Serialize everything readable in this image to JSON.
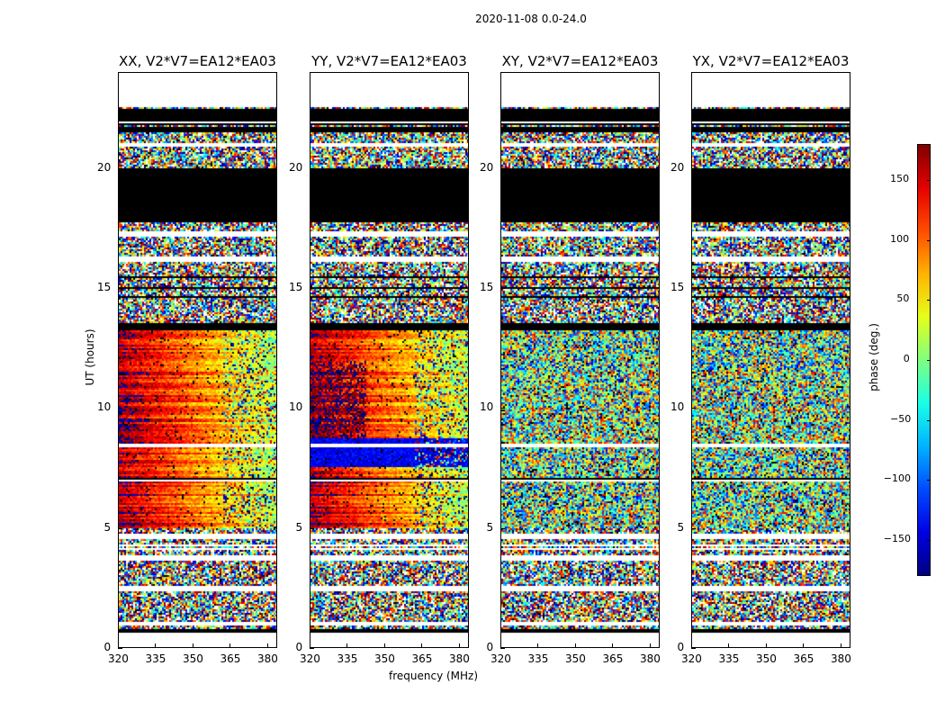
{
  "figure": {
    "suptitle": "2020-11-08 0.0-24.0"
  },
  "chart_data": {
    "type": "heatmap",
    "xlabel": "frequency (MHz)",
    "ylabel": "UT (hours)",
    "xlim": [
      320,
      384
    ],
    "ylim": [
      0,
      24
    ],
    "xticks": [
      320,
      335,
      350,
      365,
      380
    ],
    "yticks": [
      0,
      5,
      10,
      15,
      20
    ],
    "colorbar": {
      "label": "phase (deg.)",
      "range": [
        -180,
        180
      ],
      "ticks": [
        150,
        100,
        50,
        0,
        -50,
        -100,
        -150
      ],
      "tick_labels": [
        "150",
        "100",
        "50",
        "0",
        "−50",
        "−100",
        "−150"
      ],
      "colormap": "jet"
    },
    "panels": [
      {
        "title": "XX, V2*V7=EA12*EA03",
        "pattern": "parallel-hand",
        "blue_band": false
      },
      {
        "title": "YY, V2*V7=EA12*EA03",
        "pattern": "parallel-hand",
        "blue_band": true
      },
      {
        "title": "XY, V2*V7=EA12*EA03",
        "pattern": "cross-hand",
        "blue_band": false
      },
      {
        "title": "YX, V2*V7=EA12*EA03",
        "pattern": "cross-hand",
        "blue_band": false
      }
    ],
    "time_bands_hours": {
      "no_data": [
        [
          0,
          0.7
        ],
        [
          1.0,
          1.15
        ],
        [
          2.4,
          2.6
        ],
        [
          3.7,
          3.9
        ],
        [
          4.6,
          4.8
        ],
        [
          16.15,
          16.35
        ],
        [
          17.15,
          17.3
        ],
        [
          20.9,
          21.1
        ],
        [
          22.6,
          24
        ]
      ],
      "flagged_black": [
        [
          0.7,
          0.85
        ],
        [
          13.3,
          13.6
        ],
        [
          17.8,
          20.0
        ],
        [
          21.55,
          21.75
        ],
        [
          22.0,
          22.5
        ]
      ],
      "coherent_phase": [
        [
          5.0,
          13.3
        ]
      ]
    }
  }
}
